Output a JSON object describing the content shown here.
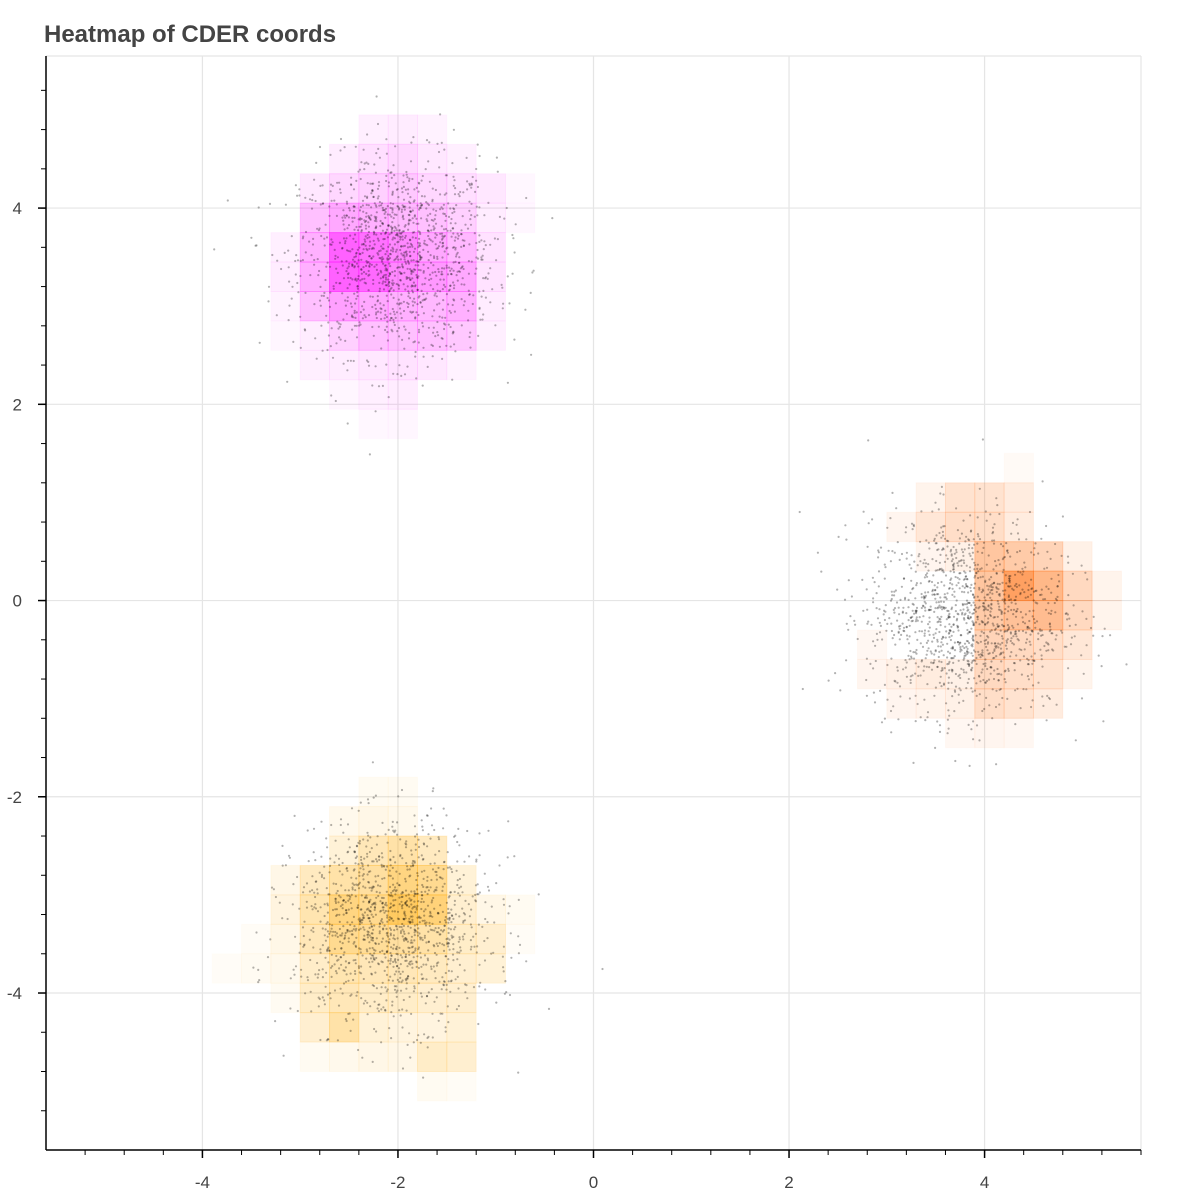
{
  "chart_data": {
    "type": "heatmap",
    "title": "Heatmap of CDER coords",
    "xlabel": "",
    "ylabel": "",
    "xlim": [
      -5.6,
      5.6
    ],
    "ylim": [
      -5.6,
      5.55
    ],
    "x_ticks": [
      -4,
      -2,
      0,
      2,
      4
    ],
    "y_ticks": [
      -4,
      -2,
      0,
      2,
      4
    ],
    "x_tick_labels": [
      "-4",
      "-2",
      "0",
      "2",
      "4"
    ],
    "y_tick_labels": [
      "-4",
      "-2",
      "0",
      "2",
      "4"
    ],
    "grid": true,
    "cell_size": 0.3,
    "clusters": [
      {
        "center": [
          -2.0,
          3.5
        ],
        "spread": 0.5,
        "point_count": 1300,
        "color": "#ff00ff",
        "cells": [
          [
            -2.55,
            3.3,
            1.0
          ],
          [
            -2.55,
            3.6,
            1.0
          ],
          [
            -2.25,
            3.3,
            0.95
          ],
          [
            -2.25,
            3.6,
            0.9
          ],
          [
            -1.95,
            3.3,
            0.75
          ],
          [
            -1.95,
            3.6,
            0.75
          ],
          [
            -1.65,
            3.3,
            0.65
          ],
          [
            -1.65,
            3.6,
            0.55
          ],
          [
            -1.35,
            3.3,
            0.55
          ],
          [
            -1.35,
            3.0,
            0.5
          ],
          [
            -1.35,
            3.6,
            0.45
          ],
          [
            -2.85,
            3.3,
            0.5
          ],
          [
            -2.85,
            3.6,
            0.5
          ],
          [
            -2.85,
            3.0,
            0.4
          ],
          [
            -2.85,
            3.9,
            0.4
          ],
          [
            -2.55,
            3.9,
            0.55
          ],
          [
            -2.25,
            3.9,
            0.5
          ],
          [
            -1.95,
            3.9,
            0.45
          ],
          [
            -1.65,
            3.9,
            0.4
          ],
          [
            -1.35,
            3.9,
            0.3
          ],
          [
            -2.55,
            3.0,
            0.6
          ],
          [
            -2.25,
            3.0,
            0.55
          ],
          [
            -1.95,
            3.0,
            0.5
          ],
          [
            -1.65,
            3.0,
            0.45
          ],
          [
            -2.55,
            2.7,
            0.3
          ],
          [
            -2.25,
            2.7,
            0.4
          ],
          [
            -1.95,
            2.7,
            0.4
          ],
          [
            -1.65,
            2.7,
            0.4
          ],
          [
            -1.35,
            2.7,
            0.35
          ],
          [
            -2.55,
            4.2,
            0.25
          ],
          [
            -2.25,
            4.2,
            0.3
          ],
          [
            -1.95,
            4.2,
            0.35
          ],
          [
            -1.65,
            4.2,
            0.25
          ],
          [
            -1.35,
            4.2,
            0.2
          ],
          [
            -1.05,
            4.2,
            0.15
          ],
          [
            -2.85,
            4.2,
            0.15
          ],
          [
            -2.25,
            4.5,
            0.2
          ],
          [
            -1.95,
            4.5,
            0.25
          ],
          [
            -1.65,
            4.5,
            0.15
          ],
          [
            -2.55,
            4.5,
            0.12
          ],
          [
            -1.35,
            4.5,
            0.1
          ],
          [
            -2.25,
            4.8,
            0.1
          ],
          [
            -1.95,
            4.8,
            0.12
          ],
          [
            -1.65,
            4.8,
            0.08
          ],
          [
            -1.05,
            3.0,
            0.12
          ],
          [
            -1.05,
            3.3,
            0.18
          ],
          [
            -1.05,
            3.6,
            0.18
          ],
          [
            -1.05,
            3.9,
            0.12
          ],
          [
            -1.05,
            2.7,
            0.1
          ],
          [
            -3.15,
            3.0,
            0.08
          ],
          [
            -3.15,
            3.3,
            0.12
          ],
          [
            -3.15,
            3.6,
            0.1
          ],
          [
            -3.15,
            2.7,
            0.06
          ],
          [
            -2.85,
            2.7,
            0.12
          ],
          [
            -2.85,
            2.4,
            0.1
          ],
          [
            -2.55,
            2.4,
            0.12
          ],
          [
            -2.25,
            2.4,
            0.15
          ],
          [
            -1.95,
            2.4,
            0.18
          ],
          [
            -1.65,
            2.4,
            0.15
          ],
          [
            -1.35,
            2.4,
            0.08
          ],
          [
            -2.25,
            2.1,
            0.1
          ],
          [
            -1.95,
            2.1,
            0.12
          ],
          [
            -2.55,
            2.1,
            0.06
          ],
          [
            -1.95,
            1.8,
            0.06
          ],
          [
            -2.25,
            1.8,
            0.05
          ],
          [
            -0.75,
            3.9,
            0.06
          ],
          [
            -0.75,
            4.2,
            0.05
          ]
        ]
      },
      {
        "center": [
          3.8,
          -0.15
        ],
        "spread": 0.5,
        "point_count": 1300,
        "color": "#ff6600",
        "cells": [
          [
            4.35,
            0.15,
            1.0
          ],
          [
            4.65,
            0.15,
            0.75
          ],
          [
            4.65,
            -0.15,
            0.7
          ],
          [
            4.35,
            -0.15,
            0.65
          ],
          [
            4.05,
            0.15,
            0.6
          ],
          [
            4.05,
            0.45,
            0.6
          ],
          [
            4.35,
            0.45,
            0.55
          ],
          [
            4.05,
            -0.15,
            0.55
          ],
          [
            4.95,
            0.15,
            0.4
          ],
          [
            4.95,
            -0.15,
            0.4
          ],
          [
            4.65,
            0.45,
            0.45
          ],
          [
            4.05,
            -0.45,
            0.45
          ],
          [
            4.35,
            -0.45,
            0.4
          ],
          [
            4.65,
            -0.45,
            0.35
          ],
          [
            4.05,
            -0.75,
            0.4
          ],
          [
            4.35,
            -0.75,
            0.35
          ],
          [
            4.65,
            -0.75,
            0.3
          ],
          [
            4.05,
            -1.05,
            0.35
          ],
          [
            4.35,
            -1.05,
            0.3
          ],
          [
            4.65,
            -1.05,
            0.2
          ],
          [
            3.75,
            0.75,
            0.35
          ],
          [
            4.05,
            0.75,
            0.35
          ],
          [
            3.75,
            1.05,
            0.3
          ],
          [
            4.05,
            1.05,
            0.3
          ],
          [
            4.35,
            1.05,
            0.2
          ],
          [
            3.45,
            0.75,
            0.25
          ],
          [
            4.35,
            0.75,
            0.2
          ],
          [
            3.45,
            -0.75,
            0.2
          ],
          [
            3.15,
            -0.75,
            0.15
          ],
          [
            2.85,
            -0.75,
            0.1
          ],
          [
            3.75,
            -0.75,
            0.15
          ],
          [
            2.85,
            -0.45,
            0.08
          ],
          [
            3.15,
            -1.05,
            0.1
          ],
          [
            3.45,
            -1.05,
            0.12
          ],
          [
            3.75,
            -1.05,
            0.15
          ],
          [
            4.95,
            -0.45,
            0.25
          ],
          [
            5.25,
            -0.15,
            0.12
          ],
          [
            5.25,
            0.15,
            0.12
          ],
          [
            4.95,
            0.45,
            0.15
          ],
          [
            4.95,
            -0.75,
            0.12
          ],
          [
            3.15,
            0.75,
            0.1
          ],
          [
            3.45,
            1.05,
            0.12
          ],
          [
            3.45,
            0.45,
            0.1
          ],
          [
            3.75,
            0.45,
            0.15
          ],
          [
            3.75,
            -1.35,
            0.08
          ],
          [
            4.05,
            -1.35,
            0.1
          ],
          [
            4.35,
            -1.35,
            0.08
          ],
          [
            4.35,
            1.35,
            0.06
          ]
        ]
      },
      {
        "center": [
          -2.05,
          -3.3
        ],
        "spread": 0.5,
        "point_count": 1300,
        "color": "#ffaa00",
        "cells": [
          [
            -1.95,
            -3.15,
            1.0
          ],
          [
            -1.65,
            -3.15,
            0.85
          ],
          [
            -2.55,
            -3.15,
            0.8
          ],
          [
            -1.95,
            -2.85,
            0.8
          ],
          [
            -1.65,
            -2.85,
            0.7
          ],
          [
            -2.55,
            -3.45,
            0.7
          ],
          [
            -2.25,
            -3.45,
            0.65
          ],
          [
            -1.95,
            -3.45,
            0.6
          ],
          [
            -1.65,
            -3.45,
            0.55
          ],
          [
            -2.25,
            -3.15,
            0.7
          ],
          [
            -2.25,
            -2.85,
            0.6
          ],
          [
            -2.55,
            -2.85,
            0.55
          ],
          [
            -2.85,
            -3.15,
            0.5
          ],
          [
            -2.85,
            -3.45,
            0.45
          ],
          [
            -2.85,
            -2.85,
            0.4
          ],
          [
            -1.95,
            -2.55,
            0.55
          ],
          [
            -2.25,
            -2.55,
            0.45
          ],
          [
            -1.65,
            -2.55,
            0.4
          ],
          [
            -2.55,
            -2.55,
            0.25
          ],
          [
            -2.55,
            -4.35,
            0.55
          ],
          [
            -2.55,
            -4.05,
            0.45
          ],
          [
            -2.25,
            -4.05,
            0.35
          ],
          [
            -2.55,
            -3.75,
            0.5
          ],
          [
            -2.25,
            -3.75,
            0.45
          ],
          [
            -1.95,
            -3.75,
            0.45
          ],
          [
            -1.65,
            -3.75,
            0.4
          ],
          [
            -2.85,
            -4.05,
            0.35
          ],
          [
            -2.85,
            -4.35,
            0.3
          ],
          [
            -2.85,
            -3.75,
            0.35
          ],
          [
            -1.95,
            -4.05,
            0.35
          ],
          [
            -1.65,
            -4.05,
            0.3
          ],
          [
            -1.35,
            -4.05,
            0.3
          ],
          [
            -1.35,
            -3.45,
            0.35
          ],
          [
            -1.35,
            -3.15,
            0.3
          ],
          [
            -1.35,
            -3.75,
            0.3
          ],
          [
            -1.35,
            -2.85,
            0.25
          ],
          [
            -1.05,
            -3.45,
            0.3
          ],
          [
            -1.05,
            -3.75,
            0.25
          ],
          [
            -1.05,
            -3.15,
            0.15
          ],
          [
            -1.65,
            -4.65,
            0.35
          ],
          [
            -1.35,
            -4.65,
            0.3
          ],
          [
            -1.35,
            -4.35,
            0.25
          ],
          [
            -1.65,
            -4.35,
            0.2
          ],
          [
            -1.95,
            -4.35,
            0.2
          ],
          [
            -2.25,
            -4.35,
            0.25
          ],
          [
            -2.25,
            -4.65,
            0.15
          ],
          [
            -1.95,
            -4.65,
            0.15
          ],
          [
            -2.55,
            -4.65,
            0.12
          ],
          [
            -2.85,
            -4.65,
            0.08
          ],
          [
            -3.15,
            -3.15,
            0.2
          ],
          [
            -3.15,
            -2.85,
            0.15
          ],
          [
            -3.15,
            -3.45,
            0.15
          ],
          [
            -3.15,
            -3.75,
            0.12
          ],
          [
            -3.15,
            -4.05,
            0.08
          ],
          [
            -3.45,
            -3.75,
            0.08
          ],
          [
            -3.45,
            -3.45,
            0.06
          ],
          [
            -3.75,
            -3.75,
            0.05
          ],
          [
            -2.55,
            -2.25,
            0.12
          ],
          [
            -2.25,
            -2.25,
            0.15
          ],
          [
            -1.95,
            -2.25,
            0.12
          ],
          [
            -2.25,
            -1.95,
            0.08
          ],
          [
            -1.95,
            -1.95,
            0.08
          ],
          [
            -0.75,
            -3.15,
            0.08
          ],
          [
            -0.75,
            -3.45,
            0.06
          ],
          [
            -1.65,
            -4.95,
            0.08
          ],
          [
            -1.35,
            -4.95,
            0.06
          ]
        ]
      }
    ]
  }
}
